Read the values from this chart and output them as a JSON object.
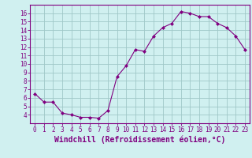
{
  "x": [
    0,
    1,
    2,
    3,
    4,
    5,
    6,
    7,
    8,
    9,
    10,
    11,
    12,
    13,
    14,
    15,
    16,
    17,
    18,
    19,
    20,
    21,
    22,
    23
  ],
  "y": [
    6.5,
    5.5,
    5.5,
    4.2,
    4.0,
    3.7,
    3.7,
    3.6,
    4.5,
    8.5,
    9.8,
    11.7,
    11.5,
    13.3,
    14.3,
    14.8,
    16.2,
    16.0,
    15.6,
    15.6,
    14.8,
    14.3,
    13.3,
    11.7
  ],
  "line_color": "#800080",
  "marker": "D",
  "marker_size": 2.5,
  "bg_color": "#d0f0f0",
  "grid_color": "#a0c8c8",
  "xlabel": "Windchill (Refroidissement éolien,°C)",
  "xlim": [
    -0.5,
    23.5
  ],
  "ylim": [
    3.0,
    17.0
  ],
  "yticks": [
    4,
    5,
    6,
    7,
    8,
    9,
    10,
    11,
    12,
    13,
    14,
    15,
    16
  ],
  "xticks": [
    0,
    1,
    2,
    3,
    4,
    5,
    6,
    7,
    8,
    9,
    10,
    11,
    12,
    13,
    14,
    15,
    16,
    17,
    18,
    19,
    20,
    21,
    22,
    23
  ],
  "tick_fontsize": 5.5,
  "xlabel_fontsize": 7.0
}
